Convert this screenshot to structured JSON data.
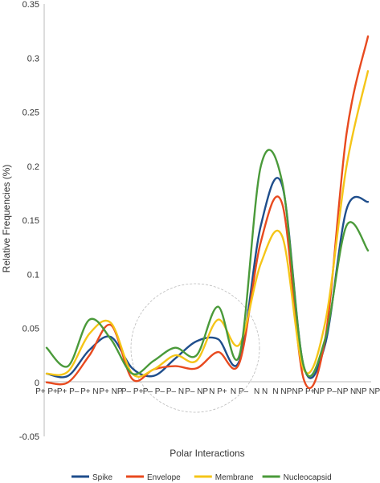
{
  "chart_data": {
    "type": "line",
    "title": "",
    "xlabel": "Polar Interactions",
    "ylabel": "Relative Frequencies (%)",
    "ylim": [
      -0.05,
      0.35
    ],
    "yticks": [
      -0.05,
      0,
      0.05,
      0.1,
      0.15,
      0.2,
      0.25,
      0.3,
      0.35
    ],
    "grid": false,
    "legend_position": "bottom",
    "categories": [
      "P+ P+",
      "P+ P–",
      "P+ N",
      "P+ NP",
      "P– P+",
      "P– P–",
      "P– N",
      "P– NP",
      "N P+",
      "N P–",
      "N N",
      "N NP",
      "NP P+",
      "NP P–",
      "NP N",
      "NP NP"
    ],
    "series": [
      {
        "name": "Spike",
        "color": "#1f4e8c",
        "values": [
          0.008,
          0.006,
          0.03,
          0.042,
          0.013,
          0.006,
          0.022,
          0.038,
          0.04,
          0.02,
          0.145,
          0.182,
          0.015,
          0.035,
          0.16,
          0.167
        ]
      },
      {
        "name": "Envelope",
        "color": "#e84a1f",
        "values": [
          0.0,
          0.0,
          0.025,
          0.053,
          0.003,
          0.012,
          0.015,
          0.013,
          0.028,
          0.018,
          0.13,
          0.165,
          0.003,
          0.04,
          0.23,
          0.32
        ]
      },
      {
        "name": "Membrane",
        "color": "#f5c518",
        "values": [
          0.008,
          0.01,
          0.045,
          0.055,
          0.008,
          0.012,
          0.025,
          0.02,
          0.058,
          0.035,
          0.11,
          0.135,
          0.012,
          0.055,
          0.2,
          0.288
        ]
      },
      {
        "name": "Nucleocapsid",
        "color": "#4a9a3a",
        "values": [
          0.032,
          0.015,
          0.058,
          0.04,
          0.008,
          0.02,
          0.032,
          0.025,
          0.07,
          0.025,
          0.2,
          0.185,
          0.015,
          0.04,
          0.145,
          0.122
        ]
      }
    ]
  }
}
